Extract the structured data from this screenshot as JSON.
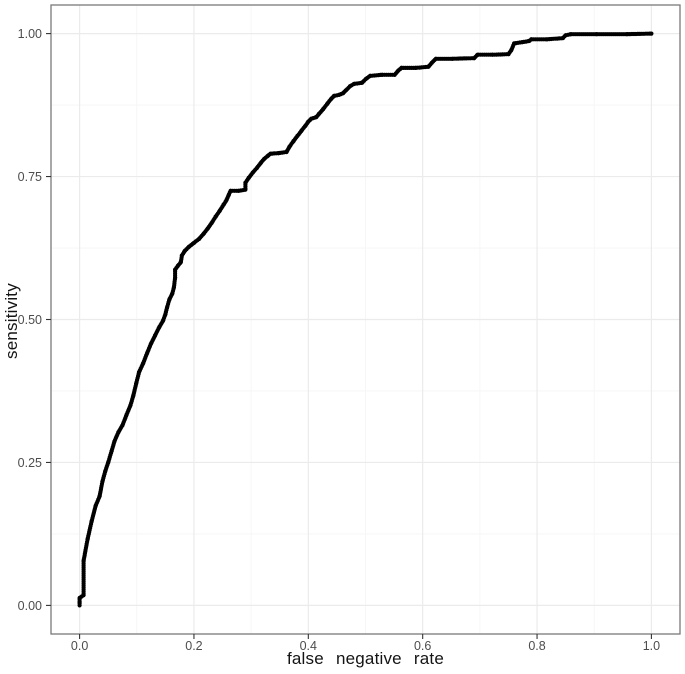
{
  "chart_data": {
    "type": "scatter",
    "subtype": "roc-step-curve-of-points",
    "title": "",
    "xlabel": "false negative rate",
    "ylabel": "sensitivity",
    "x_tick_values": [
      0.0,
      0.2,
      0.4,
      0.6,
      0.8,
      1.0
    ],
    "x_tick_labels": [
      "0.0",
      "0.2",
      "0.4",
      "0.6",
      "0.8",
      "1.0"
    ],
    "y_tick_values": [
      0.0,
      0.25,
      0.5,
      0.75,
      1.0
    ],
    "y_tick_labels": [
      "0.00",
      "0.25",
      "0.50",
      "0.75",
      "1.00"
    ],
    "xlim": [
      0,
      1
    ],
    "ylim": [
      0,
      1
    ],
    "expansion": 0.05,
    "grid": "on",
    "legend": "none",
    "colors": {
      "background": "#FFFFFF",
      "panel_background": "#FFFFFF",
      "panel_border": "#7A7A7A",
      "grid_major": "#EBEBEB",
      "grid_minor": "#F5F5F5",
      "tick_mark": "#333333",
      "tick_label": "#4D4D4D",
      "axis_title": "#141414",
      "point": "#000000"
    },
    "point_radius": 2.1,
    "point_spacing": 2.0,
    "curve": [
      [
        0.0,
        0.0
      ],
      [
        0.0,
        0.005
      ],
      [
        0.0,
        0.013
      ],
      [
        0.007,
        0.018
      ],
      [
        0.007,
        0.078
      ],
      [
        0.014,
        0.116
      ],
      [
        0.021,
        0.147
      ],
      [
        0.028,
        0.174
      ],
      [
        0.035,
        0.191
      ],
      [
        0.04,
        0.217
      ],
      [
        0.045,
        0.235
      ],
      [
        0.05,
        0.25
      ],
      [
        0.056,
        0.27
      ],
      [
        0.061,
        0.287
      ],
      [
        0.068,
        0.303
      ],
      [
        0.075,
        0.315
      ],
      [
        0.082,
        0.333
      ],
      [
        0.089,
        0.35
      ],
      [
        0.094,
        0.367
      ],
      [
        0.099,
        0.388
      ],
      [
        0.104,
        0.408
      ],
      [
        0.111,
        0.423
      ],
      [
        0.118,
        0.441
      ],
      [
        0.125,
        0.458
      ],
      [
        0.132,
        0.472
      ],
      [
        0.139,
        0.486
      ],
      [
        0.146,
        0.498
      ],
      [
        0.15,
        0.509
      ],
      [
        0.153,
        0.521
      ],
      [
        0.157,
        0.535
      ],
      [
        0.162,
        0.545
      ],
      [
        0.165,
        0.556
      ],
      [
        0.167,
        0.573
      ],
      [
        0.167,
        0.587
      ],
      [
        0.172,
        0.594
      ],
      [
        0.177,
        0.6
      ],
      [
        0.179,
        0.612
      ],
      [
        0.184,
        0.62
      ],
      [
        0.191,
        0.627
      ],
      [
        0.2,
        0.634
      ],
      [
        0.209,
        0.641
      ],
      [
        0.217,
        0.65
      ],
      [
        0.224,
        0.659
      ],
      [
        0.231,
        0.669
      ],
      [
        0.238,
        0.68
      ],
      [
        0.245,
        0.69
      ],
      [
        0.252,
        0.701
      ],
      [
        0.257,
        0.709
      ],
      [
        0.261,
        0.718
      ],
      [
        0.264,
        0.725
      ],
      [
        0.278,
        0.725
      ],
      [
        0.29,
        0.727
      ],
      [
        0.29,
        0.739
      ],
      [
        0.296,
        0.748
      ],
      [
        0.303,
        0.757
      ],
      [
        0.31,
        0.765
      ],
      [
        0.317,
        0.774
      ],
      [
        0.323,
        0.781
      ],
      [
        0.329,
        0.786
      ],
      [
        0.334,
        0.79
      ],
      [
        0.348,
        0.791
      ],
      [
        0.362,
        0.793
      ],
      [
        0.367,
        0.802
      ],
      [
        0.374,
        0.812
      ],
      [
        0.381,
        0.821
      ],
      [
        0.388,
        0.83
      ],
      [
        0.395,
        0.839
      ],
      [
        0.4,
        0.846
      ],
      [
        0.405,
        0.851
      ],
      [
        0.414,
        0.854
      ],
      [
        0.419,
        0.86
      ],
      [
        0.426,
        0.868
      ],
      [
        0.433,
        0.877
      ],
      [
        0.44,
        0.886
      ],
      [
        0.445,
        0.891
      ],
      [
        0.454,
        0.893
      ],
      [
        0.461,
        0.896
      ],
      [
        0.466,
        0.901
      ],
      [
        0.473,
        0.908
      ],
      [
        0.48,
        0.912
      ],
      [
        0.494,
        0.914
      ],
      [
        0.501,
        0.921
      ],
      [
        0.508,
        0.926
      ],
      [
        0.529,
        0.928
      ],
      [
        0.551,
        0.928
      ],
      [
        0.557,
        0.935
      ],
      [
        0.563,
        0.94
      ],
      [
        0.588,
        0.94
      ],
      [
        0.61,
        0.942
      ],
      [
        0.616,
        0.949
      ],
      [
        0.623,
        0.956
      ],
      [
        0.652,
        0.956
      ],
      [
        0.69,
        0.957
      ],
      [
        0.696,
        0.963
      ],
      [
        0.722,
        0.963
      ],
      [
        0.75,
        0.964
      ],
      [
        0.755,
        0.971
      ],
      [
        0.76,
        0.983
      ],
      [
        0.774,
        0.985
      ],
      [
        0.786,
        0.987
      ],
      [
        0.79,
        0.99
      ],
      [
        0.817,
        0.99
      ],
      [
        0.845,
        0.992
      ],
      [
        0.85,
        0.997
      ],
      [
        0.859,
        0.999
      ],
      [
        0.904,
        0.999
      ],
      [
        0.957,
        0.999
      ],
      [
        1.0,
        1.0
      ]
    ]
  }
}
